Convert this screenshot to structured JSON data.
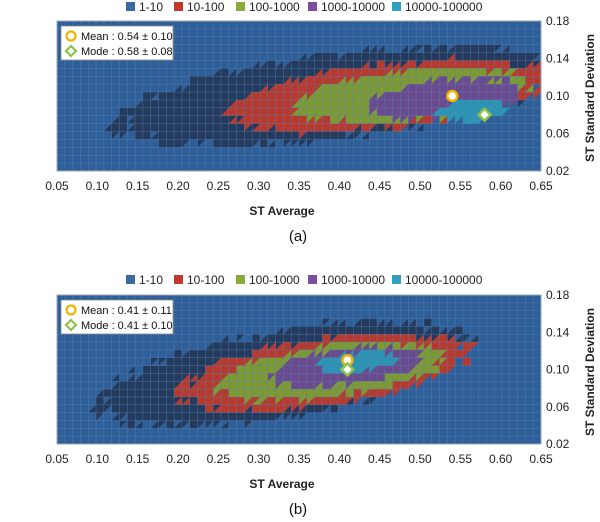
{
  "colors": {
    "background_cell": "#2f5f98",
    "grid": "#5f86b8",
    "band_1_10": "#243a5c",
    "band_10_100": "#b8392d",
    "band_100_1000": "#7e9a32",
    "band_1000_10000": "#6b4a8e",
    "band_10000_100000": "#2c95b3",
    "mean_marker": "#f2b400",
    "mode_marker": "#8bc34a"
  },
  "legend": [
    {
      "label": "1-10",
      "color": "#3b6aa3"
    },
    {
      "label": "10-100",
      "color": "#c0392b"
    },
    {
      "label": "100-1000",
      "color": "#8aab3a"
    },
    {
      "label": "1000-10000",
      "color": "#7b4f9e"
    },
    {
      "label": "10000-100000",
      "color": "#2fa0c0"
    }
  ],
  "chart_data": [
    {
      "type": "heatmap",
      "caption": "(a)",
      "xlabel": "ST Average",
      "ylabel": "ST Standard Deviation",
      "xlim": [
        0.05,
        0.65
      ],
      "ylim": [
        0.02,
        0.18
      ],
      "xticks": [
        "0.05",
        "0.10",
        "0.15",
        "0.20",
        "0.25",
        "0.30",
        "0.35",
        "0.40",
        "0.45",
        "0.50",
        "0.55",
        "0.60",
        "0.65"
      ],
      "yticks": [
        "0.02",
        "0.06",
        "0.10",
        "0.14",
        "0.18"
      ],
      "bands": [
        "1-10",
        "10-100",
        "100-1000",
        "1000-10000",
        "10000-100000"
      ],
      "regions": [
        {
          "band": "1-10",
          "cx": 0.4,
          "cy": 0.1,
          "rx": 0.275,
          "ry": 0.045,
          "tilt": 0.1
        },
        {
          "band": "10-100",
          "cx": 0.46,
          "cy": 0.1,
          "rx": 0.195,
          "ry": 0.034,
          "tilt": 0.09
        },
        {
          "band": "100-1000",
          "cx": 0.49,
          "cy": 0.1,
          "rx": 0.145,
          "ry": 0.027,
          "tilt": 0.08
        },
        {
          "band": "1000-10000",
          "cx": 0.53,
          "cy": 0.097,
          "rx": 0.095,
          "ry": 0.02,
          "tilt": 0.08
        },
        {
          "band": "10000-100000",
          "cx": 0.565,
          "cy": 0.085,
          "rx": 0.045,
          "ry": 0.011,
          "tilt": 0.06
        }
      ],
      "mean": {
        "label": "Mean : 0.54 ± 0.10",
        "x": 0.54,
        "y": 0.1
      },
      "mode": {
        "label": "Mode : 0.58 ± 0.08",
        "x": 0.58,
        "y": 0.08
      }
    },
    {
      "type": "heatmap",
      "caption": "(b)",
      "xlabel": "ST Average",
      "ylabel": "ST Standard Deviation",
      "xlim": [
        0.05,
        0.65
      ],
      "ylim": [
        0.02,
        0.18
      ],
      "xticks": [
        "0.05",
        "0.10",
        "0.15",
        "0.20",
        "0.25",
        "0.30",
        "0.35",
        "0.40",
        "0.45",
        "0.50",
        "0.55",
        "0.60",
        "0.65"
      ],
      "yticks": [
        "0.02",
        "0.06",
        "0.10",
        "0.14",
        "0.18"
      ],
      "bands": [
        "1-10",
        "10-100",
        "100-1000",
        "1000-10000",
        "10000-100000"
      ],
      "regions": [
        {
          "band": "1-10",
          "cx": 0.33,
          "cy": 0.095,
          "rx": 0.23,
          "ry": 0.047,
          "tilt": 0.14
        },
        {
          "band": "10-100",
          "cx": 0.38,
          "cy": 0.097,
          "rx": 0.18,
          "ry": 0.036,
          "tilt": 0.12
        },
        {
          "band": "100-1000",
          "cx": 0.39,
          "cy": 0.098,
          "rx": 0.14,
          "ry": 0.028,
          "tilt": 0.11
        },
        {
          "band": "1000-10000",
          "cx": 0.41,
          "cy": 0.103,
          "rx": 0.095,
          "ry": 0.019,
          "tilt": 0.1
        },
        {
          "band": "10000-100000",
          "cx": 0.42,
          "cy": 0.108,
          "rx": 0.05,
          "ry": 0.01,
          "tilt": 0.08
        }
      ],
      "mean": {
        "label": "Mean : 0.41 ± 0.11",
        "x": 0.41,
        "y": 0.11
      },
      "mode": {
        "label": "Mode : 0.41 ± 0.10",
        "x": 0.41,
        "y": 0.1
      }
    }
  ]
}
